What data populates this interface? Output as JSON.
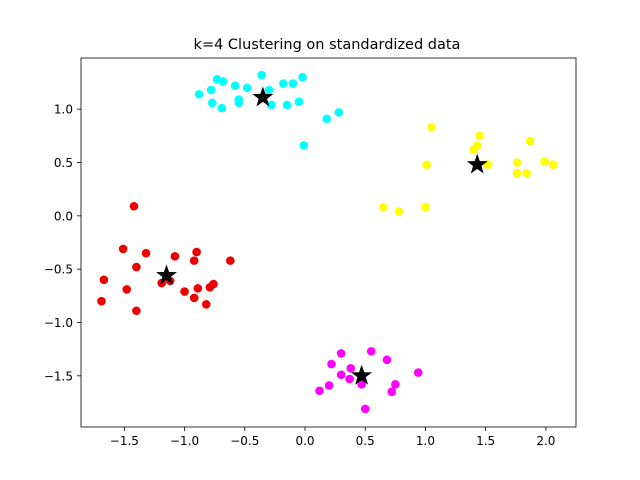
{
  "chart_data": {
    "type": "scatter",
    "title": "k=4 Clustering on standardized data",
    "xlabel": "",
    "ylabel": "",
    "xlim": [
      -1.86,
      2.25
    ],
    "ylim": [
      -1.98,
      1.48
    ],
    "xticks": [
      -1.5,
      -1.0,
      -0.5,
      0.0,
      0.5,
      1.0,
      1.5,
      2.0
    ],
    "xtick_labels": [
      "−1.5",
      "−1.0",
      "−0.5",
      "0.0",
      "0.5",
      "1.0",
      "1.5",
      "2.0"
    ],
    "yticks": [
      -1.5,
      -1.0,
      -0.5,
      0.0,
      0.5,
      1.0
    ],
    "ytick_labels": [
      "−1.5",
      "−1.0",
      "−0.5",
      "0.0",
      "0.5",
      "1.0"
    ],
    "grid": false,
    "legend": "none",
    "series": [
      {
        "color": "#00ffff",
        "points": [
          [
            -0.88,
            1.14
          ],
          [
            -0.78,
            1.18
          ],
          [
            -0.73,
            1.28
          ],
          [
            -0.68,
            1.26
          ],
          [
            -0.58,
            1.22
          ],
          [
            -0.48,
            1.2
          ],
          [
            -0.36,
            1.32
          ],
          [
            -0.3,
            1.18
          ],
          [
            -0.18,
            1.24
          ],
          [
            -0.1,
            1.24
          ],
          [
            -0.02,
            1.3
          ],
          [
            -0.77,
            1.06
          ],
          [
            -0.69,
            1.01
          ],
          [
            -0.55,
            1.06
          ],
          [
            -0.55,
            1.09
          ],
          [
            -0.28,
            1.04
          ],
          [
            -0.15,
            1.04
          ],
          [
            -0.05,
            1.07
          ],
          [
            0.18,
            0.91
          ],
          [
            0.28,
            0.97
          ],
          [
            -0.01,
            0.66
          ]
        ]
      },
      {
        "color": "#ffff00",
        "points": [
          [
            1.05,
            0.83
          ],
          [
            1.45,
            0.75
          ],
          [
            1.4,
            0.62
          ],
          [
            1.43,
            0.66
          ],
          [
            1.52,
            0.48
          ],
          [
            1.01,
            0.48
          ],
          [
            1.76,
            0.5
          ],
          [
            1.76,
            0.4
          ],
          [
            1.84,
            0.4
          ],
          [
            1.87,
            0.7
          ],
          [
            1.99,
            0.51
          ],
          [
            2.06,
            0.48
          ],
          [
            0.65,
            0.08
          ],
          [
            0.78,
            0.04
          ],
          [
            1.0,
            0.08
          ]
        ]
      },
      {
        "color": "#ee0000",
        "points": [
          [
            -1.42,
            0.09
          ],
          [
            -1.51,
            -0.31
          ],
          [
            -1.32,
            -0.35
          ],
          [
            -1.4,
            -0.48
          ],
          [
            -1.67,
            -0.6
          ],
          [
            -1.69,
            -0.8
          ],
          [
            -1.48,
            -0.69
          ],
          [
            -1.4,
            -0.89
          ],
          [
            -1.12,
            -0.61
          ],
          [
            -1.08,
            -0.38
          ],
          [
            -1.0,
            -0.71
          ],
          [
            -0.92,
            -0.77
          ],
          [
            -0.9,
            -0.34
          ],
          [
            -0.92,
            -0.42
          ],
          [
            -0.89,
            -0.68
          ],
          [
            -0.82,
            -0.83
          ],
          [
            -0.79,
            -0.67
          ],
          [
            -0.76,
            -0.64
          ],
          [
            -0.62,
            -0.42
          ],
          [
            -1.19,
            -0.63
          ]
        ]
      },
      {
        "color": "#ff00ff",
        "points": [
          [
            0.3,
            -1.29
          ],
          [
            0.55,
            -1.27
          ],
          [
            0.68,
            -1.35
          ],
          [
            0.22,
            -1.39
          ],
          [
            0.38,
            -1.43
          ],
          [
            0.3,
            -1.49
          ],
          [
            0.37,
            -1.53
          ],
          [
            0.47,
            -1.58
          ],
          [
            0.2,
            -1.59
          ],
          [
            0.12,
            -1.64
          ],
          [
            0.75,
            -1.58
          ],
          [
            0.72,
            -1.65
          ],
          [
            0.94,
            -1.47
          ],
          [
            0.5,
            -1.81
          ]
        ]
      }
    ],
    "centroids": {
      "color": "#000000",
      "marker": "star",
      "points": [
        [
          -0.35,
          1.11
        ],
        [
          1.43,
          0.48
        ],
        [
          -1.15,
          -0.56
        ],
        [
          0.47,
          -1.5
        ]
      ]
    }
  }
}
